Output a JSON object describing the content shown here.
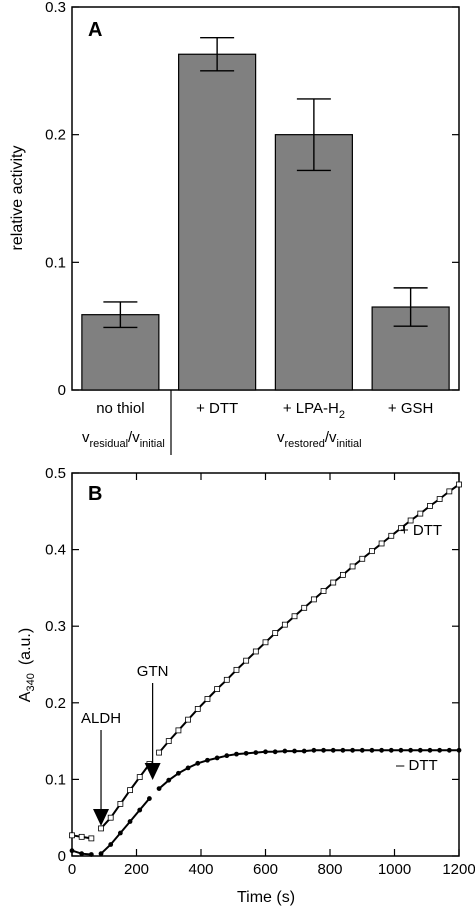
{
  "chart_data": [
    {
      "panel": "A",
      "type": "bar",
      "ylabel": "relative activity",
      "ylim": [
        0,
        0.3
      ],
      "yticks": [
        "0",
        "0.1",
        "0.2",
        "0.3"
      ],
      "categories": [
        "no thiol",
        "+ DTT",
        "+ LPA-H",
        "+ GSH"
      ],
      "category_subscripts": [
        "",
        "",
        "2",
        ""
      ],
      "values": [
        0.059,
        0.263,
        0.2,
        0.065
      ],
      "errors": [
        0.01,
        0.013,
        0.028,
        0.015
      ],
      "bar_color": "#808080",
      "group_labels": [
        {
          "v": "v",
          "a": "residual",
          "b": "/v",
          "c": "initial"
        },
        {
          "v": "v",
          "a": "restored",
          "b": "/v",
          "c": "initial"
        }
      ]
    },
    {
      "panel": "B",
      "type": "line",
      "xlabel": "Time (s)",
      "ylabel_main": "A",
      "ylabel_sub": "340",
      "ylabel_unit": "(a.u.)",
      "xlim": [
        0,
        1200
      ],
      "ylim": [
        0,
        0.5
      ],
      "xticks": [
        "0",
        "200",
        "400",
        "600",
        "800",
        "1000",
        "1200"
      ],
      "yticks": [
        "0",
        "0.1",
        "0.2",
        "0.3",
        "0.4",
        "0.5"
      ],
      "series": [
        {
          "name": "+ DTT",
          "marker": "open-square",
          "x": [
            0,
            30,
            60,
            90,
            120,
            150,
            180,
            210,
            240,
            270,
            300,
            330,
            360,
            390,
            420,
            450,
            480,
            510,
            540,
            570,
            600,
            630,
            660,
            690,
            720,
            750,
            780,
            810,
            840,
            870,
            900,
            930,
            960,
            990,
            1020,
            1050,
            1080,
            1110,
            1140,
            1170,
            1200
          ],
          "y": [
            0.027,
            0.025,
            0.023,
            0.036,
            0.05,
            0.068,
            0.086,
            0.103,
            0.12,
            0.135,
            0.15,
            0.164,
            0.178,
            0.192,
            0.205,
            0.218,
            0.23,
            0.243,
            0.255,
            0.267,
            0.279,
            0.291,
            0.302,
            0.313,
            0.324,
            0.335,
            0.346,
            0.357,
            0.367,
            0.378,
            0.388,
            0.398,
            0.408,
            0.418,
            0.428,
            0.438,
            0.447,
            0.457,
            0.466,
            0.476,
            0.485
          ]
        },
        {
          "name": "– DTT",
          "marker": "filled-circle",
          "x": [
            0,
            30,
            60,
            90,
            120,
            150,
            180,
            210,
            240,
            270,
            300,
            330,
            360,
            390,
            420,
            450,
            480,
            510,
            540,
            570,
            600,
            630,
            660,
            690,
            720,
            750,
            780,
            810,
            840,
            870,
            900,
            930,
            960,
            990,
            1020,
            1050,
            1080,
            1110,
            1140,
            1170,
            1200
          ],
          "y": [
            0.007,
            0.003,
            0.002,
            0.003,
            0.015,
            0.03,
            0.045,
            0.06,
            0.075,
            0.088,
            0.099,
            0.108,
            0.115,
            0.121,
            0.125,
            0.128,
            0.131,
            0.133,
            0.134,
            0.135,
            0.136,
            0.136,
            0.137,
            0.137,
            0.137,
            0.138,
            0.138,
            0.138,
            0.138,
            0.138,
            0.138,
            0.138,
            0.138,
            0.138,
            0.138,
            0.138,
            0.138,
            0.138,
            0.138,
            0.138,
            0.138
          ]
        }
      ],
      "annotations": [
        {
          "text": "ALDH",
          "x": 90
        },
        {
          "text": "GTN",
          "x": 250
        }
      ]
    }
  ]
}
